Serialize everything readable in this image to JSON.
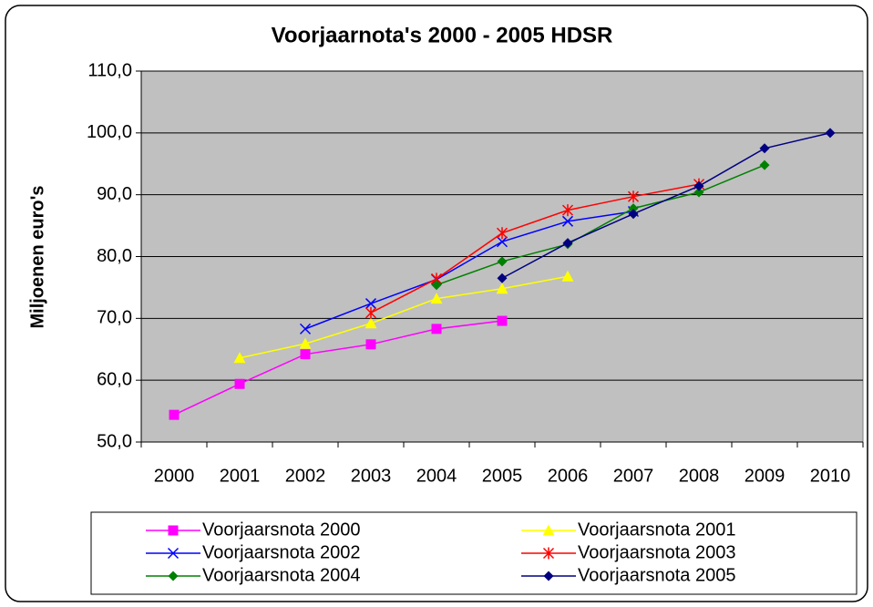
{
  "chart_data": {
    "type": "line",
    "title": "Voorjaarnota's 2000 - 2005 HDSR",
    "y_label": "Miljoenen euro's",
    "categories": [
      "2000",
      "2001",
      "2002",
      "2003",
      "2004",
      "2005",
      "2006",
      "2007",
      "2008",
      "2009",
      "2010"
    ],
    "ylim": [
      50,
      110
    ],
    "yticks": [
      {
        "value": 50,
        "label": "50,0"
      },
      {
        "value": 60,
        "label": "60,0"
      },
      {
        "value": 70,
        "label": "70,0"
      },
      {
        "value": 80,
        "label": "80,0"
      },
      {
        "value": 90,
        "label": "90,0"
      },
      {
        "value": 100,
        "label": "100,0"
      },
      {
        "value": 110,
        "label": "110,0"
      }
    ],
    "grid": true,
    "legend": "bottom",
    "series": [
      {
        "name": "Voorjaarsnota 2000",
        "color": "#ff00ff",
        "marker": "square",
        "values": [
          54.4,
          59.4,
          64.2,
          65.8,
          68.3,
          69.6,
          null,
          null,
          null,
          null,
          null
        ]
      },
      {
        "name": "Voorjaarsnota 2001",
        "color": "#ffff00",
        "marker": "triangle",
        "values": [
          null,
          63.6,
          65.9,
          69.2,
          73.2,
          74.8,
          76.8,
          null,
          null,
          null,
          null
        ]
      },
      {
        "name": "Voorjaarsnota 2002",
        "color": "#0000ff",
        "marker": "x",
        "values": [
          null,
          null,
          68.3,
          72.4,
          76.3,
          82.4,
          85.7,
          87.3,
          null,
          null,
          null
        ]
      },
      {
        "name": "Voorjaarsnota 2003",
        "color": "#ff0000",
        "marker": "star",
        "values": [
          null,
          null,
          null,
          70.9,
          76.4,
          83.8,
          87.5,
          89.7,
          91.7,
          null,
          null
        ]
      },
      {
        "name": "Voorjaarsnota 2004",
        "color": "#008000",
        "marker": "diamond",
        "values": [
          null,
          null,
          null,
          null,
          75.4,
          79.2,
          82.0,
          87.8,
          90.4,
          94.8,
          null
        ]
      },
      {
        "name": "Voorjaarsnota 2005",
        "color": "#000080",
        "marker": "diamond",
        "values": [
          null,
          null,
          null,
          null,
          null,
          76.5,
          82.2,
          86.9,
          91.4,
          97.5,
          100.0
        ]
      }
    ]
  }
}
